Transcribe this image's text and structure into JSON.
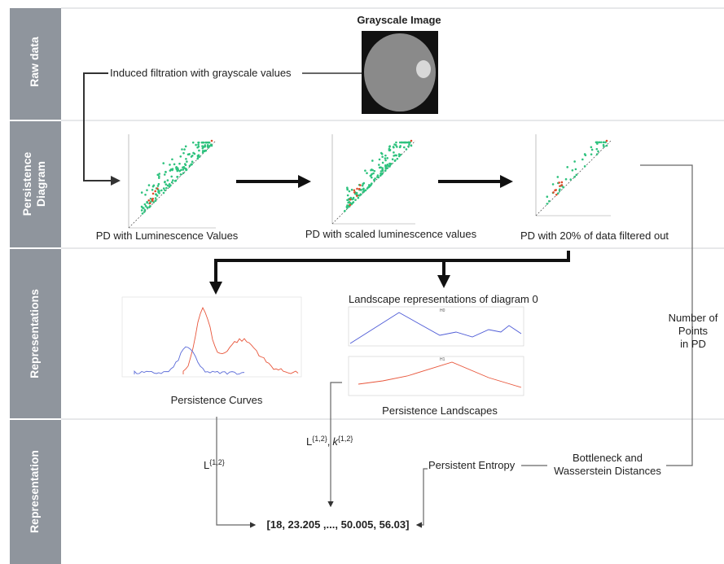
{
  "lanes": [
    "Raw data",
    "Persistence",
    "Diagram",
    "Representations",
    "Representation"
  ],
  "raw": {
    "image_title": "Grayscale Image",
    "filtration_label": "Induced filtration with grayscale values"
  },
  "diagrams": [
    "PD with Luminescence Values",
    "PD with scaled luminescence values",
    "PD with 20% of data filtered out"
  ],
  "points_label": [
    "Number of",
    "Points",
    "in PD"
  ],
  "representations": {
    "curves": "Persistence Curves",
    "landscapes": "Persistence Landscapes",
    "landscape_title": "Landscape representations of diagram 0",
    "landscape_panels": [
      "H0",
      "H1"
    ]
  },
  "curve_norm": {
    "base": "L",
    "sup": "{1,2}"
  },
  "landscape_norm": {
    "base1": "L",
    "sup1": "{1,2}",
    "sep": ",",
    "base2": "k",
    "sup2": "{1,2}"
  },
  "entropy": "Persistent Entropy",
  "distances": [
    "Bottleneck and",
    "Wasserstein Distances"
  ],
  "vector": "[18, 23.205 ,..., 50.005, 56.03]"
}
